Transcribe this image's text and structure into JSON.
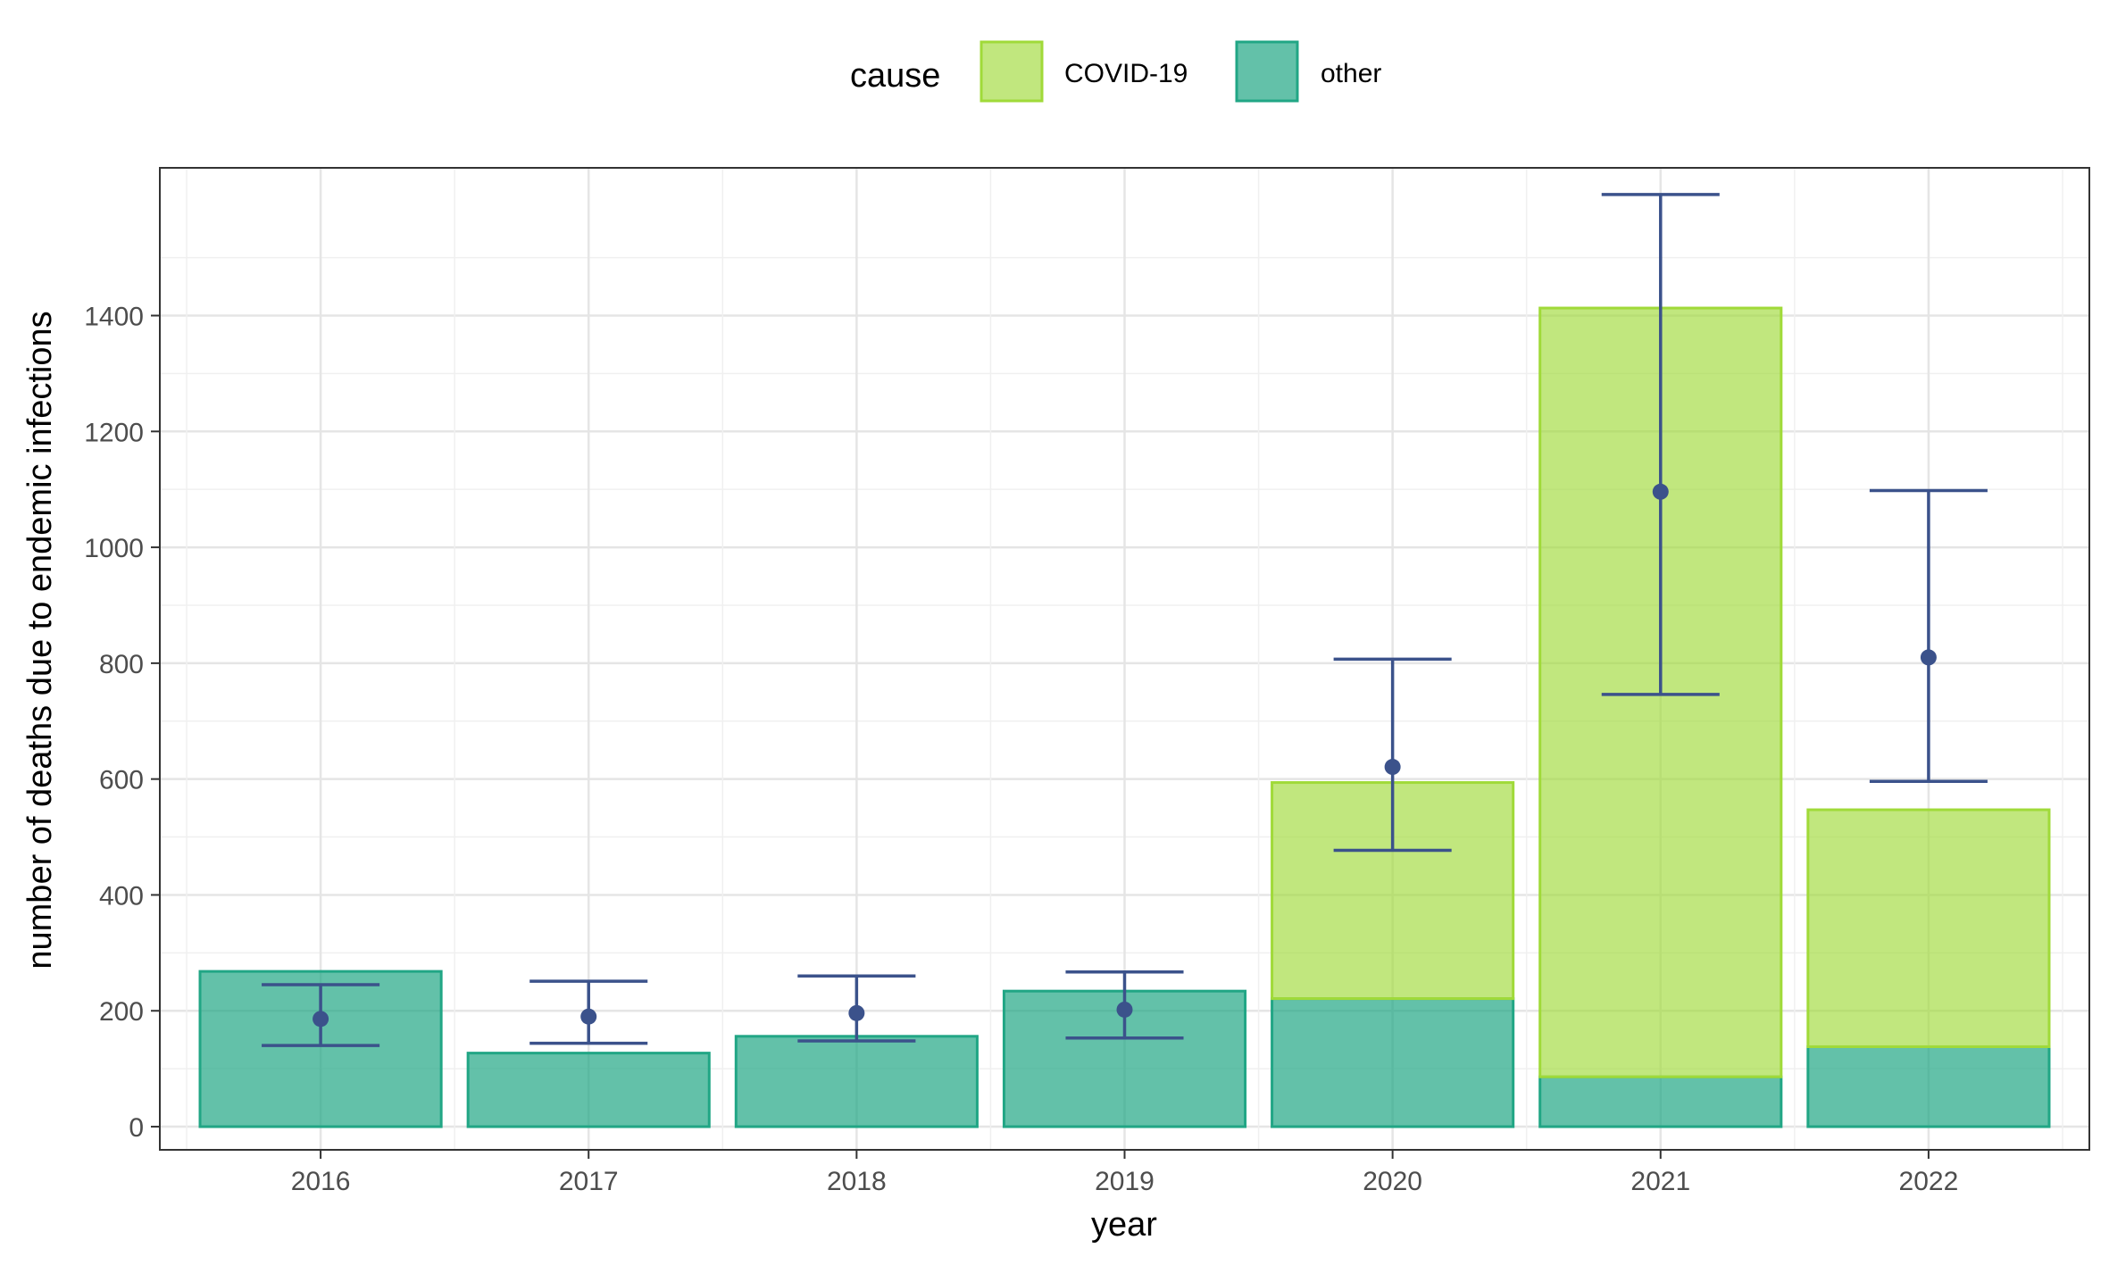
{
  "chart_data": {
    "type": "bar",
    "stacked": true,
    "title": "",
    "xlabel": "year",
    "ylabel": "number of deaths due to endemic infections",
    "categories": [
      "2016",
      "2017",
      "2018",
      "2019",
      "2020",
      "2021",
      "2022"
    ],
    "series": [
      {
        "name": "other",
        "color": "#21A685",
        "values": [
          268,
          127,
          156,
          234,
          221,
          86,
          138
        ]
      },
      {
        "name": "COVID-19",
        "color": "#A0DA39",
        "values": [
          0,
          0,
          0,
          0,
          373,
          1327,
          409
        ]
      }
    ],
    "estimate": {
      "color": "#3B528B",
      "points": [
        186,
        190,
        196,
        202,
        621,
        1096,
        810
      ],
      "lower": [
        140,
        144,
        148,
        153,
        477,
        746,
        596
      ],
      "upper": [
        245,
        251,
        260,
        267,
        807,
        1609,
        1098
      ]
    },
    "yticks": [
      0,
      200,
      400,
      600,
      800,
      1000,
      1200,
      1400
    ],
    "ylim": [
      -40,
      1655
    ],
    "grid": true,
    "legend": {
      "title": "cause",
      "position": "top",
      "entries": [
        {
          "label": "COVID-19",
          "color": "#A0DA39"
        },
        {
          "label": "other",
          "color": "#21A685"
        }
      ]
    }
  }
}
